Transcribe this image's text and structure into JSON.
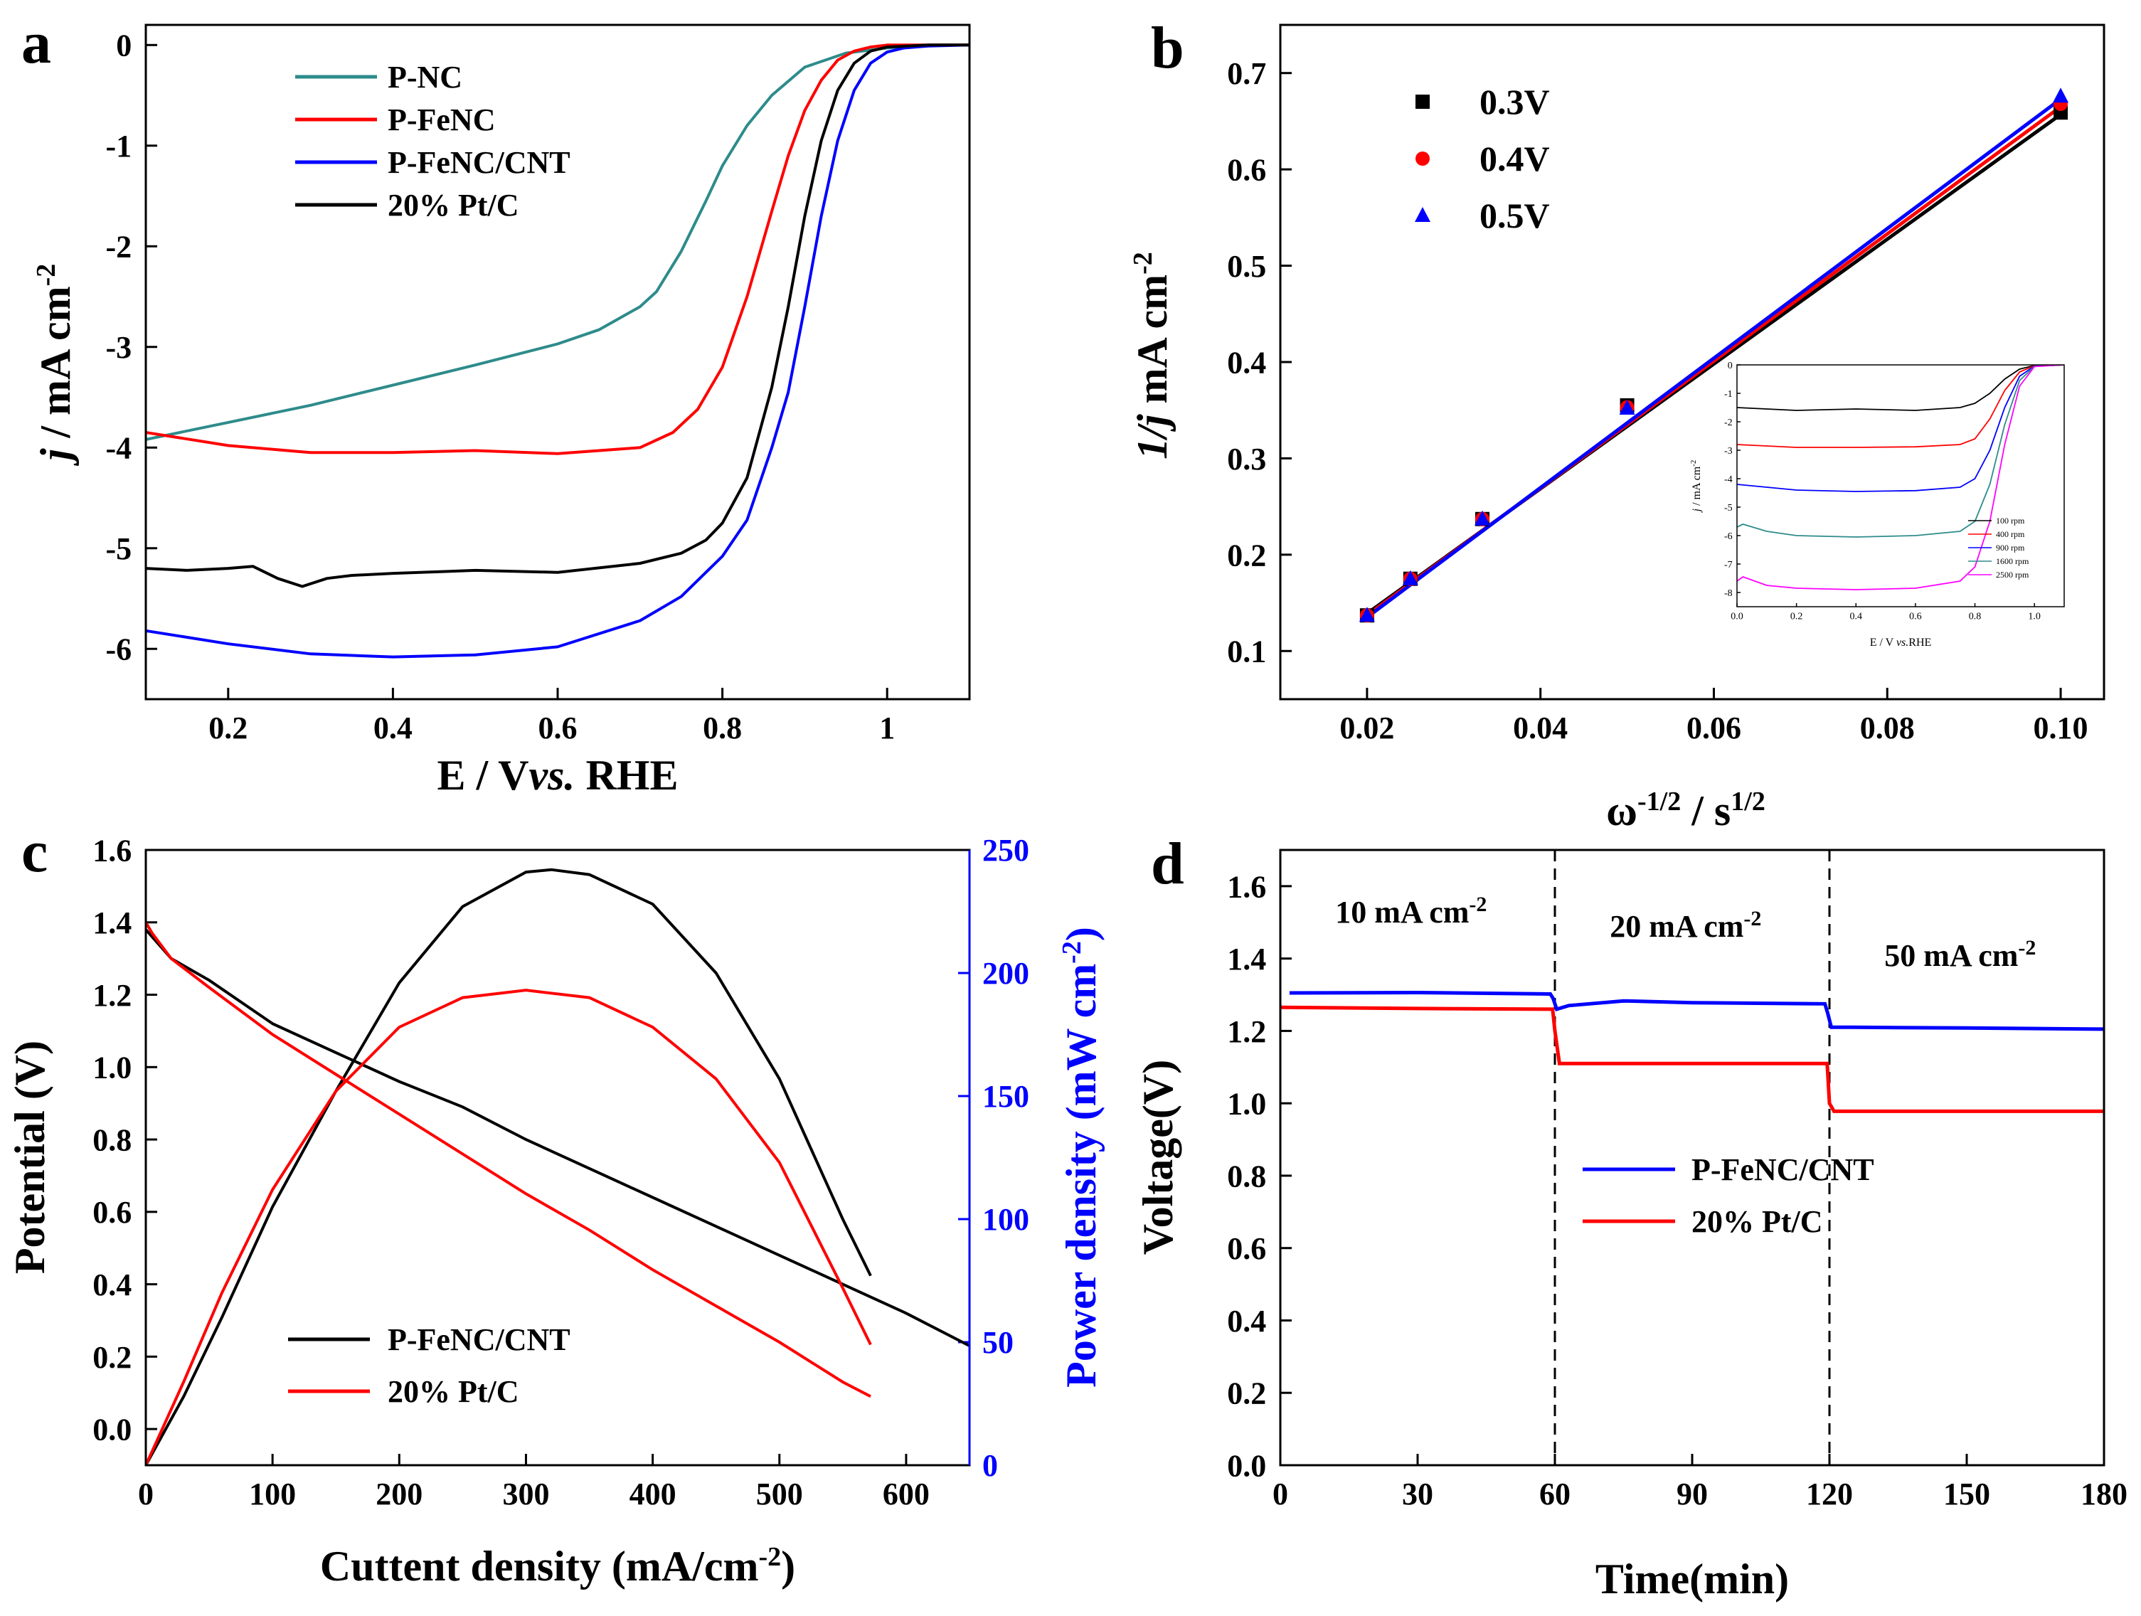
{
  "chart_data": [
    {
      "panel": "a",
      "type": "line",
      "xlabel_pre": "E / V",
      "xlabel_ital": "vs.",
      "xlabel_post": " RHE",
      "ylabel_ital": "j",
      "ylabel_main": " / mA cm",
      "ylabel_sup": "-2",
      "xlim": [
        0.1,
        1.1
      ],
      "ylim": [
        -6.5,
        0.2
      ],
      "xticks": [
        0.2,
        0.4,
        0.6,
        0.8,
        1.0
      ],
      "yticks": [
        0,
        -1,
        -2,
        -3,
        -4,
        -5,
        -6
      ],
      "legend_position": "top-left",
      "series": [
        {
          "name": "P-NC",
          "color": "#2e8b8b",
          "x": [
            0.1,
            0.2,
            0.3,
            0.4,
            0.5,
            0.6,
            0.65,
            0.7,
            0.72,
            0.75,
            0.78,
            0.8,
            0.83,
            0.86,
            0.9,
            0.95,
            1.0,
            1.05,
            1.1
          ],
          "y": [
            -3.92,
            -3.75,
            -3.58,
            -3.38,
            -3.18,
            -2.97,
            -2.83,
            -2.6,
            -2.45,
            -2.05,
            -1.55,
            -1.2,
            -0.8,
            -0.5,
            -0.22,
            -0.08,
            -0.03,
            0.0,
            0.0
          ]
        },
        {
          "name": "P-FeNC",
          "color": "#ff0000",
          "x": [
            0.1,
            0.2,
            0.3,
            0.4,
            0.5,
            0.6,
            0.7,
            0.74,
            0.77,
            0.8,
            0.83,
            0.86,
            0.88,
            0.9,
            0.92,
            0.94,
            0.96,
            0.98,
            1.0,
            1.05,
            1.1
          ],
          "y": [
            -3.85,
            -3.98,
            -4.05,
            -4.05,
            -4.03,
            -4.06,
            -4.0,
            -3.85,
            -3.62,
            -3.2,
            -2.5,
            -1.65,
            -1.1,
            -0.65,
            -0.35,
            -0.15,
            -0.06,
            -0.02,
            0.0,
            0.0,
            0.0
          ]
        },
        {
          "name": "P-FeNC/CNT",
          "color": "#0000ff",
          "x": [
            0.1,
            0.2,
            0.3,
            0.4,
            0.5,
            0.6,
            0.7,
            0.75,
            0.8,
            0.83,
            0.86,
            0.88,
            0.9,
            0.92,
            0.94,
            0.96,
            0.98,
            1.0,
            1.02,
            1.05,
            1.1
          ],
          "y": [
            -5.82,
            -5.95,
            -6.05,
            -6.08,
            -6.06,
            -5.98,
            -5.72,
            -5.48,
            -5.08,
            -4.72,
            -4.0,
            -3.45,
            -2.6,
            -1.7,
            -0.95,
            -0.45,
            -0.18,
            -0.07,
            -0.03,
            -0.01,
            0.0
          ]
        },
        {
          "name": "20% Pt/C",
          "color": "#000000",
          "x": [
            0.1,
            0.15,
            0.2,
            0.23,
            0.26,
            0.29,
            0.32,
            0.35,
            0.4,
            0.5,
            0.6,
            0.7,
            0.75,
            0.78,
            0.8,
            0.83,
            0.86,
            0.88,
            0.9,
            0.92,
            0.94,
            0.96,
            0.98,
            1.0,
            1.05,
            1.1
          ],
          "y": [
            -5.2,
            -5.22,
            -5.2,
            -5.18,
            -5.3,
            -5.38,
            -5.3,
            -5.27,
            -5.25,
            -5.22,
            -5.24,
            -5.15,
            -5.05,
            -4.92,
            -4.75,
            -4.3,
            -3.4,
            -2.6,
            -1.7,
            -0.95,
            -0.45,
            -0.18,
            -0.06,
            -0.02,
            0.0,
            0.0
          ]
        }
      ]
    },
    {
      "panel": "b",
      "type": "scatter",
      "xlabel_main": "ω",
      "xlabel_sup1": "-1/2",
      "xlabel_mid": " / s",
      "xlabel_sup2": "1/2",
      "ylabel_ital": "1/j",
      "ylabel_main": " mA cm",
      "ylabel_sup": "-2",
      "xlim": [
        0.01,
        0.105
      ],
      "ylim": [
        0.05,
        0.75
      ],
      "xticks": [
        0.02,
        0.04,
        0.06,
        0.08,
        0.1
      ],
      "xtick_labels": [
        "0.02",
        "0.04",
        "0.06",
        "0.08",
        "0.10"
      ],
      "yticks": [
        0.1,
        0.2,
        0.3,
        0.4,
        0.5,
        0.6,
        0.7
      ],
      "legend_position": "top-left",
      "series": [
        {
          "name": "0.3V",
          "color": "#000000",
          "marker": "square",
          "x": [
            0.02,
            0.025,
            0.0333,
            0.05,
            0.1
          ],
          "y": [
            0.137,
            0.175,
            0.237,
            0.355,
            0.659
          ],
          "fit": [
            [
              0.02,
              0.139
            ],
            [
              0.1,
              0.657
            ]
          ]
        },
        {
          "name": "0.4V",
          "color": "#ff0000",
          "marker": "circle",
          "x": [
            0.02,
            0.025,
            0.0333,
            0.05,
            0.1
          ],
          "y": [
            0.137,
            0.175,
            0.237,
            0.353,
            0.668
          ],
          "fit": [
            [
              0.02,
              0.137
            ],
            [
              0.1,
              0.665
            ]
          ]
        },
        {
          "name": "0.5V",
          "color": "#0000ff",
          "marker": "triangle",
          "x": [
            0.02,
            0.025,
            0.0333,
            0.05,
            0.1
          ],
          "y": [
            0.137,
            0.175,
            0.237,
            0.352,
            0.676
          ],
          "fit": [
            [
              0.02,
              0.135
            ],
            [
              0.1,
              0.673
            ]
          ]
        }
      ],
      "inset": {
        "type": "line",
        "xlabel_pre": "E  /  V  ",
        "xlabel_ital": "vs.",
        "xlabel_post": "RHE",
        "ylabel_ital": "j",
        "ylabel_main": " / mA cm",
        "ylabel_sup": "-2",
        "xlim": [
          0.0,
          1.1
        ],
        "ylim": [
          -8.5,
          0
        ],
        "xticks": [
          0.0,
          0.2,
          0.4,
          0.6,
          0.8,
          1.0
        ],
        "xtick_labels": [
          "0.0",
          "0.2",
          "0.4",
          "0.6",
          "0.8",
          "1.0"
        ],
        "yticks": [
          0,
          -1,
          -2,
          -3,
          -4,
          -5,
          -6,
          -7,
          -8
        ],
        "series": [
          {
            "name": "100 rpm",
            "color": "#000000",
            "x": [
              0.0,
              0.2,
              0.4,
              0.6,
              0.75,
              0.8,
              0.85,
              0.9,
              0.95,
              1.0,
              1.1
            ],
            "y": [
              -1.5,
              -1.6,
              -1.55,
              -1.6,
              -1.5,
              -1.35,
              -1.0,
              -0.5,
              -0.15,
              -0.02,
              0.0
            ]
          },
          {
            "name": "400 rpm",
            "color": "#ff0000",
            "x": [
              0.0,
              0.2,
              0.4,
              0.6,
              0.75,
              0.8,
              0.85,
              0.9,
              0.95,
              1.0,
              1.1
            ],
            "y": [
              -2.8,
              -2.9,
              -2.9,
              -2.88,
              -2.8,
              -2.6,
              -1.9,
              -0.9,
              -0.25,
              -0.03,
              0.0
            ]
          },
          {
            "name": "900 rpm",
            "color": "#0000ff",
            "x": [
              0.0,
              0.2,
              0.4,
              0.6,
              0.75,
              0.8,
              0.85,
              0.9,
              0.95,
              1.0,
              1.1
            ],
            "y": [
              -4.2,
              -4.4,
              -4.45,
              -4.42,
              -4.3,
              -4.0,
              -3.0,
              -1.5,
              -0.4,
              -0.04,
              0.0
            ]
          },
          {
            "name": "1600 rpm",
            "color": "#2e8b8b",
            "x": [
              0.0,
              0.02,
              0.1,
              0.2,
              0.4,
              0.6,
              0.75,
              0.8,
              0.85,
              0.9,
              0.95,
              1.0,
              1.1
            ],
            "y": [
              -5.7,
              -5.6,
              -5.85,
              -6.0,
              -6.05,
              -6.0,
              -5.85,
              -5.5,
              -4.2,
              -2.1,
              -0.55,
              -0.05,
              0.0
            ]
          },
          {
            "name": "2500 rpm",
            "color": "#ff00ff",
            "x": [
              0.0,
              0.02,
              0.1,
              0.2,
              0.4,
              0.6,
              0.75,
              0.8,
              0.85,
              0.9,
              0.95,
              1.0,
              1.1
            ],
            "y": [
              -7.6,
              -7.45,
              -7.75,
              -7.85,
              -7.9,
              -7.85,
              -7.6,
              -7.1,
              -5.5,
              -2.8,
              -0.75,
              -0.06,
              0.0
            ]
          }
        ]
      }
    },
    {
      "panel": "c",
      "type": "line",
      "xlabel": "Cuttent density (mA/cm",
      "xlabel_sup": "-2",
      "xlabel_close": ")",
      "ylabel": "Potential (V)",
      "ylabel_right_main": "Power density (mW cm",
      "ylabel_right_sup": "-2",
      "ylabel_right_close": ")",
      "right_axis_color": "#0000ff",
      "xlim": [
        0,
        650
      ],
      "ylim": [
        -0.1,
        1.6
      ],
      "ylim_right": [
        0,
        250
      ],
      "xticks": [
        0,
        100,
        200,
        300,
        400,
        500,
        600
      ],
      "yticks": [
        0.0,
        0.2,
        0.4,
        0.6,
        0.8,
        1.0,
        1.2,
        1.4,
        1.6
      ],
      "ytick_labels": [
        "0.0",
        "0.2",
        "0.4",
        "0.6",
        "0.8",
        "1.0",
        "1.2",
        "1.4",
        "1.6"
      ],
      "yticks_right": [
        0,
        50,
        100,
        150,
        200,
        250
      ],
      "legend_position": "bottom-left",
      "series": [
        {
          "name": "P-FeNC/CNT",
          "color": "#000000",
          "axis": "left",
          "x": [
            0,
            20,
            50,
            100,
            150,
            200,
            250,
            300,
            350,
            400,
            450,
            500,
            550,
            600,
            650
          ],
          "y": [
            1.38,
            1.3,
            1.24,
            1.12,
            1.04,
            0.96,
            0.89,
            0.8,
            0.72,
            0.64,
            0.56,
            0.48,
            0.4,
            0.32,
            0.23
          ]
        },
        {
          "name": "P-FeNC/CNT power",
          "color": "#000000",
          "axis": "right",
          "x": [
            0,
            30,
            60,
            100,
            150,
            200,
            250,
            300,
            320,
            350,
            400,
            450,
            500,
            550,
            572
          ],
          "y": [
            0,
            28,
            60,
            105,
            152,
            196,
            227,
            241,
            242,
            240,
            228,
            200,
            157,
            100,
            77
          ]
        },
        {
          "name": "20% Pt/C",
          "color": "#ff0000",
          "axis": "left",
          "x": [
            0,
            5,
            20,
            50,
            100,
            150,
            200,
            250,
            300,
            350,
            400,
            450,
            500,
            550,
            572
          ],
          "y": [
            1.4,
            1.37,
            1.3,
            1.22,
            1.09,
            0.98,
            0.87,
            0.76,
            0.65,
            0.55,
            0.44,
            0.34,
            0.24,
            0.13,
            0.09
          ]
        },
        {
          "name": "20% Pt/C power",
          "color": "#ff0000",
          "axis": "right",
          "x": [
            0,
            30,
            60,
            100,
            150,
            200,
            250,
            300,
            350,
            400,
            450,
            500,
            550,
            572
          ],
          "y": [
            0,
            34,
            70,
            112,
            152,
            178,
            190,
            193,
            190,
            178,
            157,
            123,
            72,
            49
          ]
        }
      ]
    },
    {
      "panel": "d",
      "type": "line",
      "xlabel": "Time(min)",
      "ylabel": "Voltage(V)",
      "xlim": [
        0,
        180
      ],
      "ylim": [
        0,
        1.7
      ],
      "xticks": [
        0,
        30,
        60,
        90,
        120,
        150,
        180
      ],
      "yticks": [
        0.0,
        0.2,
        0.4,
        0.6,
        0.8,
        1.0,
        1.2,
        1.4,
        1.6
      ],
      "ytick_labels": [
        "0.0",
        "0.2",
        "0.4",
        "0.6",
        "0.8",
        "1.0",
        "1.2",
        "1.4",
        "1.6"
      ],
      "vlines": [
        60,
        120
      ],
      "annotations": [
        {
          "text": "10 mA cm",
          "sup": "-2",
          "x": 12,
          "y": 1.5
        },
        {
          "text": "20 mA cm",
          "sup": "-2",
          "x": 72,
          "y": 1.46
        },
        {
          "text": "50 mA cm",
          "sup": "-2",
          "x": 132,
          "y": 1.38
        }
      ],
      "legend_position": "center",
      "series": [
        {
          "name": "P-FeNC/CNT",
          "color": "#0000ff",
          "x": [
            2,
            30,
            59,
            59.6,
            60.4,
            63,
            75,
            90,
            119,
            119.6,
            120.4,
            125,
            150,
            180
          ],
          "y": [
            1.305,
            1.306,
            1.302,
            1.29,
            1.26,
            1.27,
            1.283,
            1.278,
            1.275,
            1.25,
            1.21,
            1.21,
            1.208,
            1.205
          ]
        },
        {
          "name": "20% Pt/C",
          "color": "#ff0000",
          "x": [
            0,
            30,
            59.5,
            60,
            61,
            90,
            119.5,
            120,
            121,
            150,
            180
          ],
          "y": [
            1.265,
            1.262,
            1.26,
            1.2,
            1.11,
            1.11,
            1.11,
            1.0,
            0.978,
            0.978,
            0.978
          ]
        }
      ]
    }
  ]
}
